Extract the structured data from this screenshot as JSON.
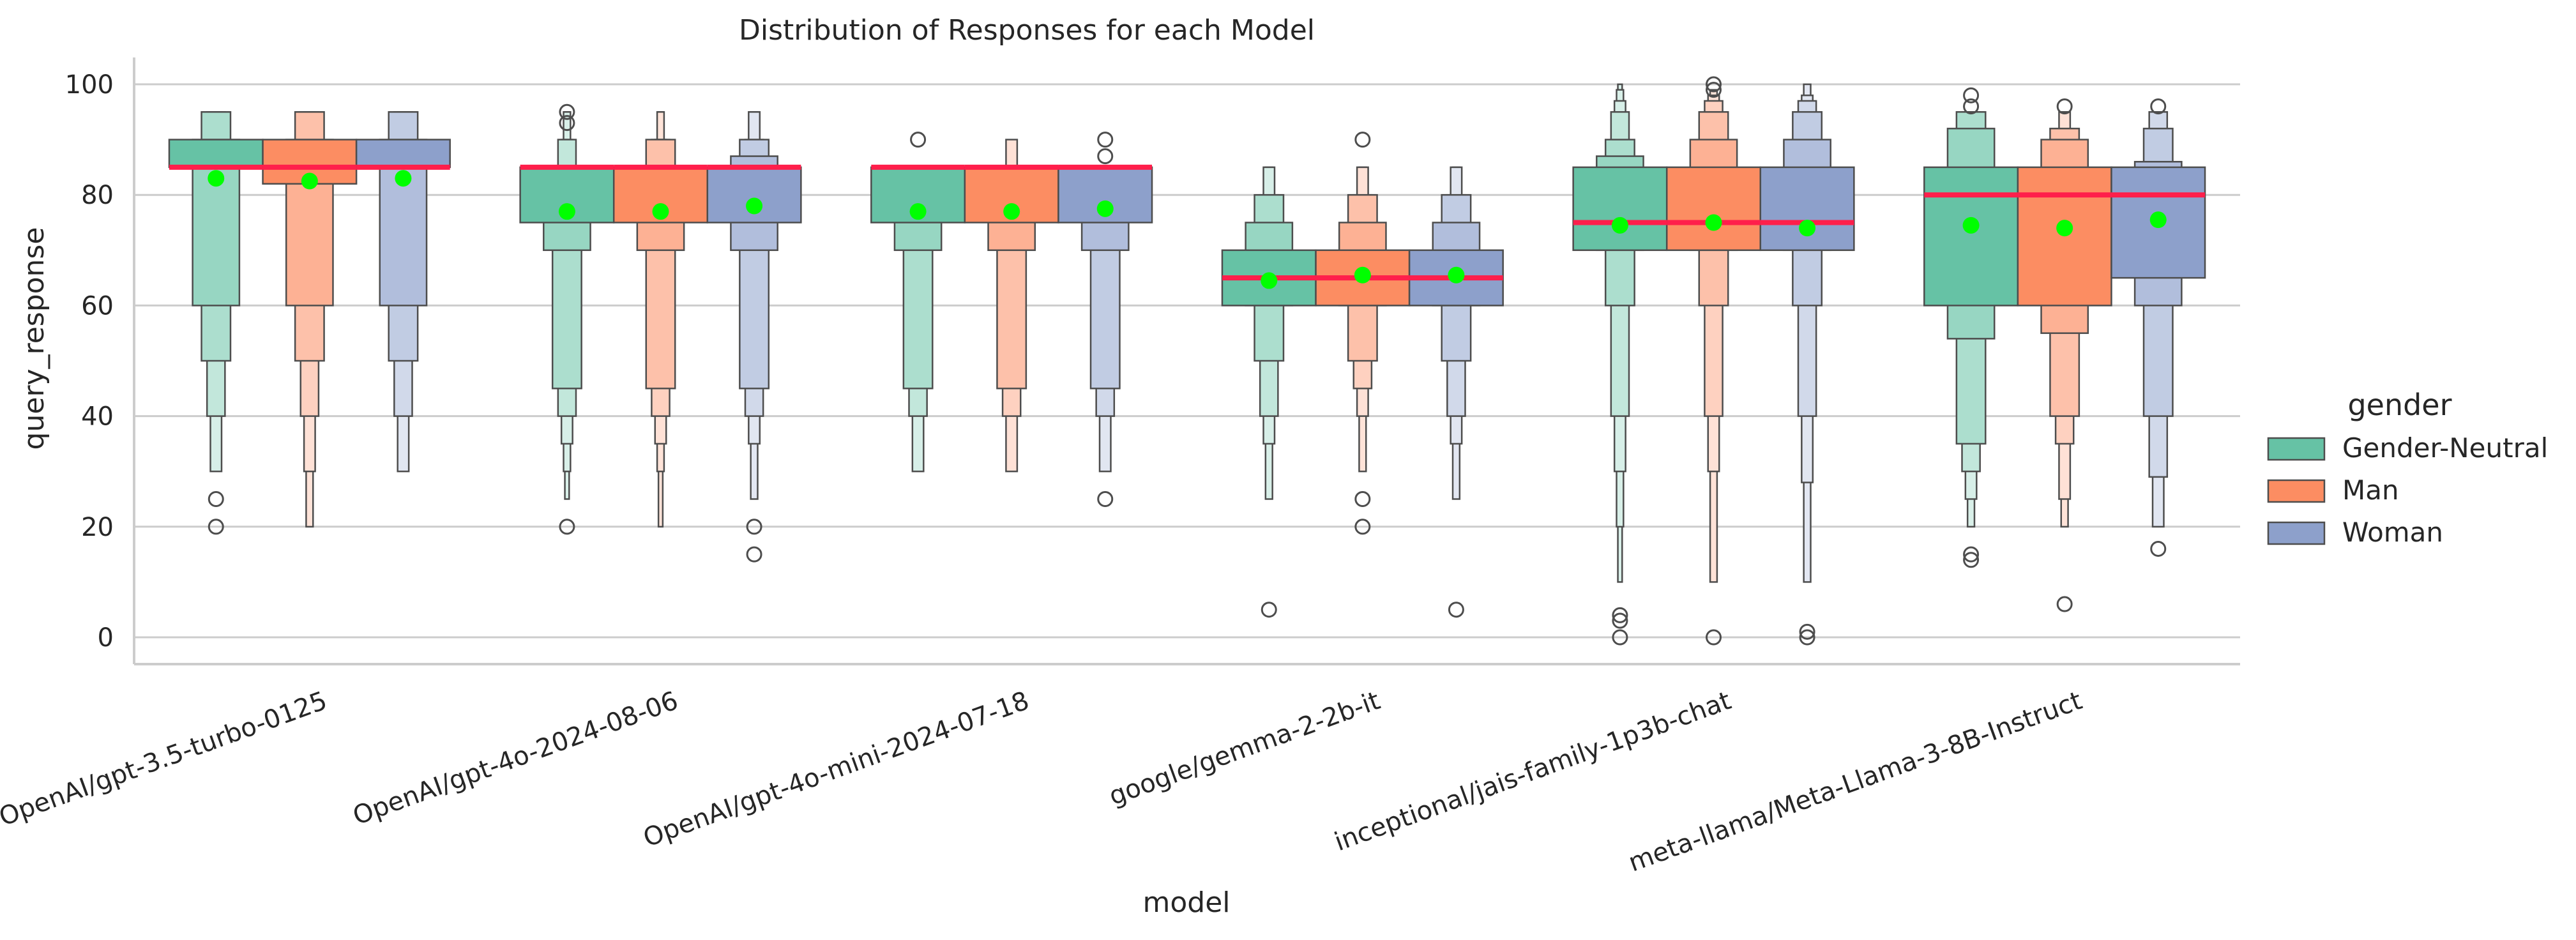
{
  "chart_data": {
    "type": "boxen",
    "title": "Distribution of Responses for each Model",
    "xlabel": "model",
    "ylabel": "query_response",
    "ylim": [
      -5,
      105
    ],
    "yticks": [
      0,
      20,
      40,
      60,
      80,
      100
    ],
    "grid": "horizontal",
    "legend": {
      "title": "gender",
      "placement": "right"
    },
    "colors": {
      "Gender-Neutral": "#66c2a5",
      "Man": "#fc8d62",
      "Woman": "#8da0cb",
      "median_line": "#ff1f4b",
      "mean_marker": "#00ff00"
    },
    "categories": [
      "OpenAI/gpt-3.5-turbo-0125",
      "OpenAI/gpt-4o-2024-08-06",
      "OpenAI/gpt-4o-mini-2024-07-18",
      "google/gemma-2-2b-it",
      "inceptional/jais-family-1p3b-chat",
      "meta-llama/Meta-Llama-3-8B-Instruct"
    ],
    "series": [
      {
        "name": "Gender-Neutral",
        "boxes": [
          {
            "median": 85,
            "mean": 83,
            "levels": [
              [
                85,
                90
              ],
              [
                60,
                90
              ],
              [
                50,
                95
              ],
              [
                40,
                95
              ],
              [
                30,
                95
              ]
            ],
            "outliers": [
              25,
              20
            ]
          },
          {
            "median": 85,
            "mean": 77,
            "levels": [
              [
                75,
                85
              ],
              [
                70,
                85
              ],
              [
                45,
                85
              ],
              [
                40,
                90
              ],
              [
                35,
                90
              ],
              [
                30,
                95
              ],
              [
                25,
                95
              ]
            ],
            "outliers": [
              95,
              93,
              20
            ]
          },
          {
            "median": 85,
            "mean": 77,
            "levels": [
              [
                75,
                85
              ],
              [
                70,
                85
              ],
              [
                45,
                85
              ],
              [
                40,
                85
              ],
              [
                30,
                85
              ]
            ],
            "outliers": [
              90
            ]
          },
          {
            "median": 65,
            "mean": 64.5,
            "levels": [
              [
                60,
                70
              ],
              [
                60,
                75
              ],
              [
                50,
                80
              ],
              [
                40,
                80
              ],
              [
                35,
                85
              ],
              [
                25,
                85
              ]
            ],
            "outliers": [
              5
            ]
          },
          {
            "median": 75,
            "mean": 74.5,
            "levels": [
              [
                70,
                85
              ],
              [
                70,
                87
              ],
              [
                60,
                90
              ],
              [
                40,
                95
              ],
              [
                30,
                97
              ],
              [
                20,
                99
              ],
              [
                10,
                100
              ]
            ],
            "outliers": [
              4,
              3,
              0
            ]
          },
          {
            "median": 80,
            "mean": 74.5,
            "levels": [
              [
                60,
                85
              ],
              [
                54,
                92
              ],
              [
                35,
                95
              ],
              [
                30,
                95
              ],
              [
                25,
                95
              ],
              [
                20,
                95
              ]
            ],
            "outliers": [
              98,
              96,
              15,
              14
            ]
          }
        ]
      },
      {
        "name": "Man",
        "boxes": [
          {
            "median": 85,
            "mean": 82.5,
            "levels": [
              [
                82,
                90
              ],
              [
                60,
                90
              ],
              [
                50,
                95
              ],
              [
                40,
                95
              ],
              [
                30,
                95
              ],
              [
                20,
                95
              ]
            ],
            "outliers": []
          },
          {
            "median": 85,
            "mean": 77,
            "levels": [
              [
                75,
                85
              ],
              [
                70,
                85
              ],
              [
                45,
                90
              ],
              [
                40,
                90
              ],
              [
                35,
                90
              ],
              [
                30,
                95
              ],
              [
                20,
                95
              ]
            ],
            "outliers": []
          },
          {
            "median": 85,
            "mean": 77,
            "levels": [
              [
                75,
                85
              ],
              [
                70,
                85
              ],
              [
                45,
                85
              ],
              [
                40,
                85
              ],
              [
                30,
                90
              ]
            ],
            "outliers": []
          },
          {
            "median": 65,
            "mean": 65.5,
            "levels": [
              [
                60,
                70
              ],
              [
                60,
                75
              ],
              [
                50,
                80
              ],
              [
                45,
                80
              ],
              [
                40,
                85
              ],
              [
                30,
                85
              ]
            ],
            "outliers": [
              90,
              25,
              20
            ]
          },
          {
            "median": 75,
            "mean": 75,
            "levels": [
              [
                70,
                85
              ],
              [
                70,
                90
              ],
              [
                60,
                95
              ],
              [
                40,
                97
              ],
              [
                30,
                98
              ],
              [
                10,
                99
              ]
            ],
            "outliers": [
              100,
              99,
              0
            ]
          },
          {
            "median": 80,
            "mean": 74,
            "levels": [
              [
                60,
                85
              ],
              [
                55,
                90
              ],
              [
                40,
                92
              ],
              [
                35,
                92
              ],
              [
                25,
                95
              ],
              [
                20,
                95
              ]
            ],
            "outliers": [
              96,
              6
            ]
          }
        ]
      },
      {
        "name": "Woman",
        "boxes": [
          {
            "median": 85,
            "mean": 83,
            "levels": [
              [
                85,
                90
              ],
              [
                60,
                90
              ],
              [
                50,
                95
              ],
              [
                40,
                95
              ],
              [
                30,
                95
              ]
            ],
            "outliers": []
          },
          {
            "median": 85,
            "mean": 78,
            "levels": [
              [
                75,
                85
              ],
              [
                70,
                87
              ],
              [
                45,
                90
              ],
              [
                40,
                90
              ],
              [
                35,
                95
              ],
              [
                25,
                95
              ]
            ],
            "outliers": [
              20,
              15
            ]
          },
          {
            "median": 85,
            "mean": 77.5,
            "levels": [
              [
                75,
                85
              ],
              [
                70,
                85
              ],
              [
                45,
                85
              ],
              [
                40,
                85
              ],
              [
                30,
                85
              ]
            ],
            "outliers": [
              90,
              87,
              25
            ]
          },
          {
            "median": 65,
            "mean": 65.5,
            "levels": [
              [
                60,
                70
              ],
              [
                60,
                75
              ],
              [
                50,
                80
              ],
              [
                40,
                80
              ],
              [
                35,
                85
              ],
              [
                25,
                85
              ]
            ],
            "outliers": [
              5
            ]
          },
          {
            "median": 75,
            "mean": 74,
            "levels": [
              [
                70,
                85
              ],
              [
                70,
                90
              ],
              [
                60,
                95
              ],
              [
                40,
                97
              ],
              [
                28,
                98
              ],
              [
                10,
                100
              ]
            ],
            "outliers": [
              1,
              0
            ]
          },
          {
            "median": 80,
            "mean": 75.5,
            "levels": [
              [
                65,
                85
              ],
              [
                60,
                86
              ],
              [
                40,
                92
              ],
              [
                29,
                95
              ],
              [
                20,
                95
              ]
            ],
            "outliers": [
              96,
              16
            ]
          }
        ]
      }
    ]
  }
}
